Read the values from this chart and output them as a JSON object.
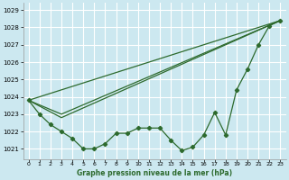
{
  "title": "Graphe pression niveau de la mer (hPa)",
  "bg_color": "#cce8f0",
  "grid_color": "#ffffff",
  "line_color": "#2d6a2d",
  "xlim": [
    -0.5,
    23.5
  ],
  "ylim": [
    1020.4,
    1029.4
  ],
  "yticks": [
    1021,
    1022,
    1023,
    1024,
    1025,
    1026,
    1027,
    1028,
    1029
  ],
  "xticks": [
    0,
    1,
    2,
    3,
    4,
    5,
    6,
    7,
    8,
    9,
    10,
    11,
    12,
    13,
    14,
    15,
    16,
    17,
    18,
    19,
    20,
    21,
    22,
    23
  ],
  "series_main_x": [
    0,
    1,
    2,
    3,
    4,
    5,
    6,
    7,
    8,
    9,
    10,
    11,
    12,
    13,
    14,
    15,
    16,
    17,
    18,
    19,
    20,
    21,
    22,
    23
  ],
  "series_main_y": [
    1023.8,
    1023.0,
    1022.4,
    1022.0,
    1021.6,
    1021.0,
    1021.0,
    1021.3,
    1021.9,
    1021.9,
    1022.2,
    1022.2,
    1022.2,
    1021.5,
    1020.9,
    1021.1,
    1021.8,
    1023.1,
    1021.8,
    1024.4,
    1025.6,
    1027.0,
    1028.1,
    1028.4
  ],
  "trend1_x": [
    0,
    23
  ],
  "trend1_y": [
    1023.8,
    1028.4
  ],
  "trend2_x": [
    0,
    3,
    23
  ],
  "trend2_y": [
    1023.8,
    1022.8,
    1028.4
  ],
  "trend3_x": [
    0,
    3,
    23
  ],
  "trend3_y": [
    1023.8,
    1023.0,
    1028.4
  ]
}
